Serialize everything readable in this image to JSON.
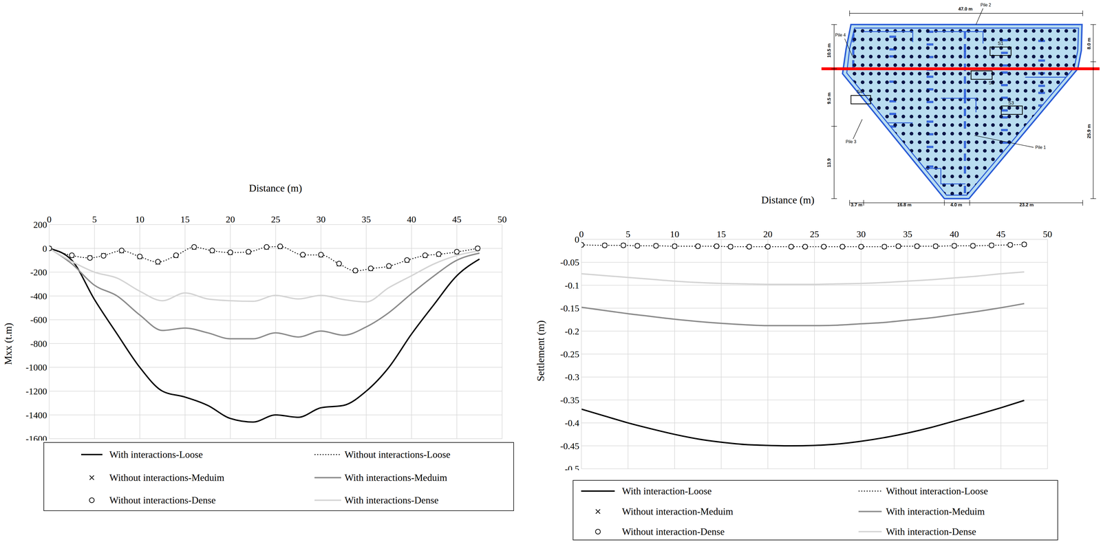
{
  "chart_data": [
    {
      "type": "line",
      "x_label": "Distance (m)",
      "y_label": "Mxx (t.m)",
      "xlim": [
        0,
        50
      ],
      "xticks": [
        0,
        5,
        10,
        15,
        20,
        25,
        30,
        35,
        40,
        45,
        50
      ],
      "ylim": [
        -1600,
        200
      ],
      "yticks": [
        200,
        0,
        -200,
        -400,
        -600,
        -800,
        -1000,
        -1200,
        -1400,
        -1600
      ],
      "grid": true,
      "series": [
        {
          "name": "With interactions-Loose",
          "color": "#000000",
          "line_style": "solid",
          "marker": "none",
          "x": [
            0,
            2.5,
            5,
            7.5,
            10,
            12.5,
            15,
            17.5,
            20,
            22.5,
            25,
            27.5,
            30,
            32.5,
            35,
            37.5,
            40,
            42.5,
            45,
            47.5
          ],
          "values": [
            0,
            -100,
            -430,
            -720,
            -1000,
            -1200,
            -1250,
            -1320,
            -1430,
            -1460,
            -1400,
            -1420,
            -1340,
            -1320,
            -1200,
            -1000,
            -720,
            -470,
            -230,
            -90
          ]
        },
        {
          "name": "Without interactions-Loose",
          "color": "#000000",
          "line_style": "dotted",
          "marker": "none",
          "x": [
            0,
            2.5,
            4.5,
            6,
            8,
            10,
            12,
            14,
            16,
            18,
            20,
            22,
            24,
            25.5,
            28,
            30,
            32,
            33.8,
            35.5,
            37.5,
            39.5,
            41.5,
            43,
            45,
            47.3
          ],
          "values": [
            0,
            -60,
            -80,
            -60,
            -20,
            -70,
            -115,
            -60,
            10,
            -20,
            -35,
            -30,
            10,
            15,
            -55,
            -55,
            -130,
            -190,
            -170,
            -150,
            -100,
            -60,
            -50,
            -30,
            0
          ]
        },
        {
          "name": "Without interactions-Meduim",
          "color": "#000000",
          "line_style": "none",
          "marker": "x",
          "x": [
            0,
            2.5,
            4.5,
            6,
            8,
            10,
            12,
            14,
            16,
            18,
            20,
            22,
            24,
            25.5,
            28,
            30,
            32,
            33.8,
            35.5,
            37.5,
            39.5,
            41.5,
            43,
            45,
            47.3
          ],
          "values": [
            0,
            -62,
            -78,
            -58,
            -22,
            -72,
            -118,
            -62,
            8,
            -22,
            -37,
            -32,
            8,
            13,
            -57,
            -57,
            -132,
            -188,
            -172,
            -152,
            -102,
            -62,
            -52,
            -32,
            0
          ]
        },
        {
          "name": "With interactions-Meduim",
          "color": "#8c8c8c",
          "line_style": "solid",
          "marker": "none",
          "x": [
            0,
            2.5,
            5,
            7.5,
            10,
            12.5,
            15,
            17.5,
            20,
            22.5,
            25,
            27.5,
            30,
            32.5,
            35,
            37.5,
            40,
            42.5,
            45,
            47.5
          ],
          "values": [
            0,
            -130,
            -310,
            -400,
            -560,
            -690,
            -670,
            -710,
            -760,
            -760,
            -710,
            -745,
            -695,
            -730,
            -660,
            -540,
            -380,
            -230,
            -100,
            -40
          ]
        },
        {
          "name": "Without interactions-Dense",
          "color": "#000000",
          "line_style": "none",
          "marker": "o",
          "x": [
            0,
            2.5,
            4.5,
            6,
            8,
            10,
            12,
            14,
            16,
            18,
            20,
            22,
            24,
            25.5,
            28,
            30,
            32,
            33.8,
            35.5,
            37.5,
            39.5,
            41.5,
            43,
            45,
            47.3
          ],
          "values": [
            0,
            -58,
            -80,
            -62,
            -18,
            -68,
            -112,
            -58,
            12,
            -18,
            -33,
            -28,
            12,
            17,
            -53,
            -53,
            -128,
            -186,
            -168,
            -148,
            -98,
            -58,
            -48,
            -28,
            0
          ]
        },
        {
          "name": "With interactions-Dense",
          "color": "#d4d4d4",
          "line_style": "solid",
          "marker": "none",
          "x": [
            0,
            2.5,
            5,
            7.5,
            10,
            12.5,
            15,
            17.5,
            20,
            22.5,
            25,
            27.5,
            30,
            32.5,
            35,
            37.5,
            40,
            42.5,
            45,
            47.5
          ],
          "values": [
            0,
            -110,
            -200,
            -250,
            -360,
            -440,
            -375,
            -425,
            -440,
            -445,
            -395,
            -425,
            -395,
            -430,
            -450,
            -330,
            -230,
            -130,
            -60,
            -20
          ]
        }
      ]
    },
    {
      "type": "line",
      "x_label": "Distance (m)",
      "y_label": "Settlement (m)",
      "xlim": [
        0,
        50
      ],
      "xticks": [
        0,
        5,
        10,
        15,
        20,
        25,
        30,
        35,
        40,
        45,
        50
      ],
      "ylim": [
        -0.5,
        0
      ],
      "yticks": [
        0,
        -0.05,
        -0.1,
        -0.15,
        -0.2,
        -0.25,
        -0.3,
        -0.35,
        -0.4,
        -0.45,
        -0.5
      ],
      "grid": true,
      "series": [
        {
          "name": "With interaction-Loose",
          "color": "#000000",
          "line_style": "solid",
          "marker": "none",
          "x": [
            0,
            2.5,
            5,
            7.5,
            10,
            12.5,
            15,
            17.5,
            20,
            22.5,
            25,
            27.5,
            30,
            32.5,
            35,
            37.5,
            40,
            42.5,
            45,
            47.5
          ],
          "values": [
            -0.37,
            -0.385,
            -0.4,
            -0.413,
            -0.425,
            -0.435,
            -0.442,
            -0.447,
            -0.449,
            -0.45,
            -0.449,
            -0.446,
            -0.44,
            -0.432,
            -0.422,
            -0.41,
            -0.396,
            -0.382,
            -0.367,
            -0.351
          ]
        },
        {
          "name": "Without interaction-Loose",
          "color": "#000000",
          "line_style": "dotted",
          "marker": "none",
          "x": [
            0,
            2.5,
            4.5,
            6,
            8,
            10,
            12.5,
            14.5,
            16,
            18,
            20,
            22.5,
            24,
            26,
            28,
            30,
            32.5,
            34,
            36,
            38,
            40,
            42,
            44,
            46,
            47.5
          ],
          "values": [
            -0.012,
            -0.013,
            -0.013,
            -0.014,
            -0.014,
            -0.015,
            -0.015,
            -0.015,
            -0.016,
            -0.016,
            -0.016,
            -0.016,
            -0.016,
            -0.016,
            -0.016,
            -0.016,
            -0.016,
            -0.015,
            -0.015,
            -0.015,
            -0.014,
            -0.014,
            -0.013,
            -0.012,
            -0.011
          ]
        },
        {
          "name": "Without interaction-Meduim",
          "color": "#000000",
          "line_style": "none",
          "marker": "x",
          "x": [
            0,
            2.5,
            4.5,
            6,
            8,
            10,
            12.5,
            14.5,
            16,
            18,
            20,
            22.5,
            24,
            26,
            28,
            30,
            32.5,
            34,
            36,
            38,
            40,
            42,
            44,
            46,
            47.5
          ],
          "values": [
            -0.012,
            -0.013,
            -0.013,
            -0.014,
            -0.014,
            -0.015,
            -0.015,
            -0.015,
            -0.016,
            -0.016,
            -0.016,
            -0.016,
            -0.016,
            -0.016,
            -0.016,
            -0.016,
            -0.016,
            -0.015,
            -0.015,
            -0.015,
            -0.014,
            -0.014,
            -0.013,
            -0.012,
            -0.011
          ]
        },
        {
          "name": "With interaction-Meduim",
          "color": "#8c8c8c",
          "line_style": "solid",
          "marker": "none",
          "x": [
            0,
            2.5,
            5,
            7.5,
            10,
            12.5,
            15,
            17.5,
            20,
            22.5,
            25,
            27.5,
            30,
            32.5,
            35,
            37.5,
            40,
            42.5,
            45,
            47.5
          ],
          "values": [
            -0.148,
            -0.155,
            -0.162,
            -0.168,
            -0.174,
            -0.179,
            -0.183,
            -0.186,
            -0.188,
            -0.188,
            -0.188,
            -0.187,
            -0.184,
            -0.181,
            -0.176,
            -0.171,
            -0.164,
            -0.157,
            -0.149,
            -0.14
          ]
        },
        {
          "name": "Without interaction-Dense",
          "color": "#000000",
          "line_style": "none",
          "marker": "o",
          "x": [
            0,
            2.5,
            4.5,
            6,
            8,
            10,
            12.5,
            14.5,
            16,
            18,
            20,
            22.5,
            24,
            26,
            28,
            30,
            32.5,
            34,
            36,
            38,
            40,
            42,
            44,
            46,
            47.5
          ],
          "values": [
            -0.012,
            -0.013,
            -0.013,
            -0.014,
            -0.014,
            -0.015,
            -0.015,
            -0.015,
            -0.016,
            -0.016,
            -0.016,
            -0.016,
            -0.016,
            -0.016,
            -0.016,
            -0.016,
            -0.016,
            -0.015,
            -0.015,
            -0.015,
            -0.014,
            -0.014,
            -0.013,
            -0.012,
            -0.011
          ]
        },
        {
          "name": "With interaction-Dense",
          "color": "#d4d4d4",
          "line_style": "solid",
          "marker": "none",
          "x": [
            0,
            2.5,
            5,
            7.5,
            10,
            12.5,
            15,
            17.5,
            20,
            22.5,
            25,
            27.5,
            30,
            32.5,
            35,
            37.5,
            40,
            42.5,
            45,
            47.5
          ],
          "values": [
            -0.075,
            -0.079,
            -0.083,
            -0.087,
            -0.091,
            -0.094,
            -0.096,
            -0.097,
            -0.098,
            -0.098,
            -0.098,
            -0.097,
            -0.096,
            -0.094,
            -0.091,
            -0.088,
            -0.084,
            -0.08,
            -0.075,
            -0.071
          ]
        }
      ]
    }
  ],
  "diagram": {
    "dimensions": [
      "47.0 m",
      "10.5 m",
      "8.0 m",
      "9.5 m",
      "25.9 m",
      "13.9",
      "3.7 m",
      "16.8 m",
      "4.0 m",
      "23.2 m"
    ],
    "piles": [
      "Pile 2",
      "Pile 4",
      "Pile 3",
      "Pile 1"
    ],
    "sections": [
      "S1",
      "S2",
      "S4",
      "S3"
    ]
  }
}
